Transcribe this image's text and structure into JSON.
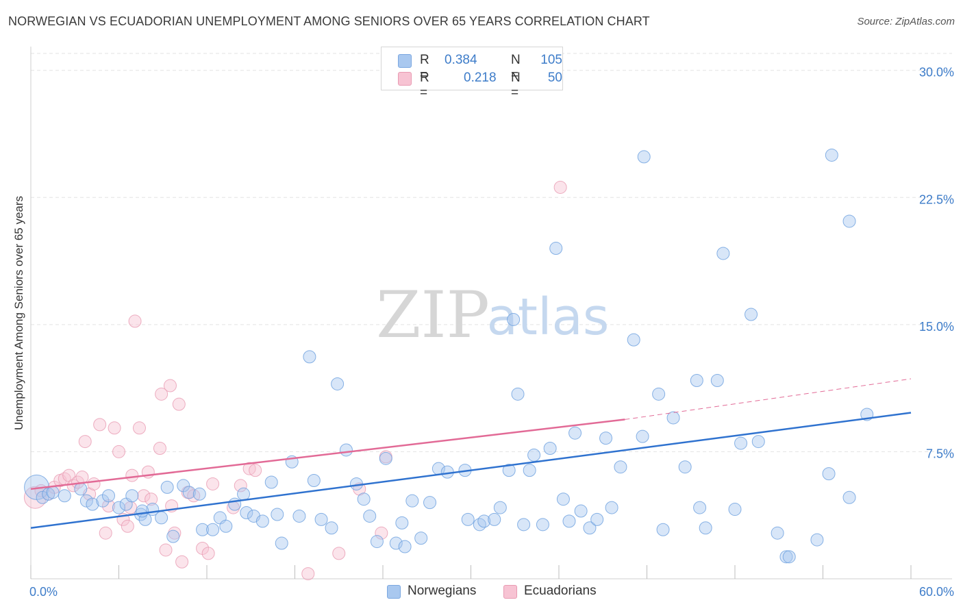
{
  "header": {
    "title": "NORWEGIAN VS ECUADORIAN UNEMPLOYMENT AMONG SENIORS OVER 65 YEARS CORRELATION CHART",
    "source": "Source: ZipAtlas.com"
  },
  "watermark": {
    "zip": "ZIP",
    "atlas": "atlas"
  },
  "legend": {
    "r_label": "R =",
    "n_label": "N =",
    "rows": [
      {
        "r": "0.384",
        "n": "105",
        "color": "#a9c8ef",
        "border": "#7aa7e0"
      },
      {
        "r": "0.218",
        "n": "50",
        "color": "#f7c3d3",
        "border": "#e89ab2"
      }
    ]
  },
  "bottom_legend": [
    {
      "label": "Norwegians",
      "color": "#a9c8ef",
      "border": "#7aa7e0"
    },
    {
      "label": "Ecuadorians",
      "color": "#f7c3d3",
      "border": "#e89ab2"
    }
  ],
  "chart_data": {
    "type": "scatter",
    "title": "NORWEGIAN VS ECUADORIAN UNEMPLOYMENT AMONG SENIORS OVER 65 YEARS CORRELATION CHART",
    "xlabel": "",
    "ylabel": "Unemployment Among Seniors over 65 years",
    "xlim": [
      0,
      60
    ],
    "ylim": [
      0,
      31
    ],
    "x_tick_labels": [
      "0.0%",
      "60.0%"
    ],
    "y_ticks": [
      7.5,
      15.0,
      22.5,
      30.0
    ],
    "y_tick_labels": [
      "7.5%",
      "15.0%",
      "22.5%",
      "30.0%"
    ],
    "grid": true,
    "legend_position": "top-center",
    "series": [
      {
        "name": "Norwegians",
        "color": "#7aaee6",
        "line_color": "#2f72cf",
        "trend": {
          "x": [
            0,
            60
          ],
          "y": [
            3.0,
            9.8
          ]
        },
        "points": [
          [
            0.4,
            5.4
          ],
          [
            0.8,
            4.8
          ],
          [
            1.2,
            5.0
          ],
          [
            1.5,
            5.1
          ],
          [
            2.3,
            4.9
          ],
          [
            3.4,
            5.3
          ],
          [
            3.8,
            4.6
          ],
          [
            4.2,
            4.4
          ],
          [
            4.9,
            4.6
          ],
          [
            5.3,
            4.9
          ],
          [
            6.0,
            4.2
          ],
          [
            6.5,
            4.4
          ],
          [
            6.9,
            4.9
          ],
          [
            7.5,
            3.8
          ],
          [
            7.8,
            3.5
          ],
          [
            8.3,
            4.1
          ],
          [
            8.9,
            3.6
          ],
          [
            9.3,
            5.4
          ],
          [
            9.7,
            2.5
          ],
          [
            10.4,
            5.5
          ],
          [
            10.8,
            5.1
          ],
          [
            11.5,
            5.0
          ],
          [
            11.7,
            2.9
          ],
          [
            12.4,
            2.9
          ],
          [
            12.9,
            3.6
          ],
          [
            13.3,
            3.1
          ],
          [
            13.9,
            4.4
          ],
          [
            14.5,
            5.0
          ],
          [
            14.7,
            3.9
          ],
          [
            15.2,
            3.7
          ],
          [
            15.8,
            3.4
          ],
          [
            16.4,
            5.7
          ],
          [
            16.8,
            3.8
          ],
          [
            17.1,
            2.1
          ],
          [
            17.8,
            6.9
          ],
          [
            18.3,
            3.7
          ],
          [
            19.0,
            13.1
          ],
          [
            19.3,
            5.8
          ],
          [
            19.8,
            3.5
          ],
          [
            20.5,
            3.0
          ],
          [
            20.9,
            11.5
          ],
          [
            21.5,
            7.6
          ],
          [
            22.2,
            5.6
          ],
          [
            22.7,
            4.7
          ],
          [
            23.1,
            3.7
          ],
          [
            23.6,
            2.2
          ],
          [
            24.2,
            7.1
          ],
          [
            24.9,
            2.1
          ],
          [
            25.3,
            3.3
          ],
          [
            25.5,
            1.9
          ],
          [
            26.0,
            4.6
          ],
          [
            26.6,
            2.4
          ],
          [
            27.2,
            4.5
          ],
          [
            27.8,
            6.5
          ],
          [
            28.4,
            6.3
          ],
          [
            29.6,
            6.4
          ],
          [
            29.8,
            3.5
          ],
          [
            30.6,
            3.2
          ],
          [
            30.9,
            3.4
          ],
          [
            31.6,
            3.5
          ],
          [
            32.0,
            4.2
          ],
          [
            32.6,
            6.4
          ],
          [
            32.9,
            15.3
          ],
          [
            33.2,
            10.9
          ],
          [
            33.6,
            3.2
          ],
          [
            34.0,
            6.4
          ],
          [
            34.3,
            7.3
          ],
          [
            34.9,
            3.2
          ],
          [
            35.4,
            7.7
          ],
          [
            35.8,
            19.5
          ],
          [
            36.3,
            4.7
          ],
          [
            36.7,
            3.4
          ],
          [
            37.1,
            8.6
          ],
          [
            37.5,
            4.0
          ],
          [
            38.1,
            3.0
          ],
          [
            38.6,
            3.5
          ],
          [
            39.2,
            8.3
          ],
          [
            39.6,
            4.2
          ],
          [
            40.2,
            6.6
          ],
          [
            41.1,
            14.1
          ],
          [
            41.7,
            8.4
          ],
          [
            41.8,
            24.9
          ],
          [
            42.8,
            10.9
          ],
          [
            43.1,
            2.9
          ],
          [
            43.8,
            9.5
          ],
          [
            44.6,
            6.6
          ],
          [
            45.4,
            11.7
          ],
          [
            45.6,
            4.2
          ],
          [
            46.0,
            3.0
          ],
          [
            46.8,
            11.7
          ],
          [
            47.2,
            19.2
          ],
          [
            48.0,
            4.1
          ],
          [
            48.4,
            8.0
          ],
          [
            49.1,
            15.6
          ],
          [
            49.6,
            8.1
          ],
          [
            50.9,
            2.7
          ],
          [
            51.5,
            1.3
          ],
          [
            51.7,
            1.3
          ],
          [
            53.6,
            2.3
          ],
          [
            54.4,
            6.2
          ],
          [
            54.6,
            25.0
          ],
          [
            55.8,
            21.1
          ],
          [
            55.8,
            4.8
          ],
          [
            57.0,
            9.7
          ],
          [
            7.6,
            4.0
          ]
        ],
        "sizes_note": "first point drawn larger"
      },
      {
        "name": "Ecuadorians",
        "color": "#f2a3bd",
        "line_color": "#e26a96",
        "trend": {
          "x": [
            0,
            40.5
          ],
          "y": [
            5.3,
            9.4
          ]
        },
        "trend_dashed": {
          "x": [
            40.5,
            60
          ],
          "y": [
            9.4,
            11.8
          ]
        },
        "points": [
          [
            0.3,
            4.8
          ],
          [
            0.7,
            5.2
          ],
          [
            1.2,
            5.0
          ],
          [
            1.6,
            5.4
          ],
          [
            2.0,
            5.8
          ],
          [
            2.3,
            5.9
          ],
          [
            2.6,
            6.1
          ],
          [
            2.9,
            5.5
          ],
          [
            3.2,
            5.7
          ],
          [
            3.5,
            6.0
          ],
          [
            3.7,
            8.1
          ],
          [
            4.0,
            5.0
          ],
          [
            4.3,
            5.6
          ],
          [
            4.7,
            9.1
          ],
          [
            5.1,
            2.7
          ],
          [
            5.3,
            4.3
          ],
          [
            5.7,
            8.9
          ],
          [
            6.0,
            7.5
          ],
          [
            6.3,
            3.5
          ],
          [
            6.6,
            3.1
          ],
          [
            6.9,
            6.1
          ],
          [
            7.1,
            15.2
          ],
          [
            7.4,
            8.9
          ],
          [
            7.7,
            4.9
          ],
          [
            8.0,
            6.3
          ],
          [
            8.2,
            4.7
          ],
          [
            8.8,
            7.7
          ],
          [
            8.9,
            10.9
          ],
          [
            9.2,
            1.7
          ],
          [
            9.5,
            11.4
          ],
          [
            9.8,
            2.7
          ],
          [
            10.1,
            10.3
          ],
          [
            10.3,
            1.0
          ],
          [
            10.7,
            5.1
          ],
          [
            11.1,
            4.9
          ],
          [
            11.7,
            1.8
          ],
          [
            12.1,
            1.5
          ],
          [
            12.4,
            5.6
          ],
          [
            13.8,
            4.2
          ],
          [
            14.3,
            5.5
          ],
          [
            14.9,
            6.5
          ],
          [
            15.3,
            6.4
          ],
          [
            18.9,
            0.3
          ],
          [
            21.0,
            1.5
          ],
          [
            22.4,
            5.3
          ],
          [
            23.9,
            2.7
          ],
          [
            24.2,
            7.2
          ],
          [
            36.1,
            23.1
          ],
          [
            9.6,
            4.3
          ],
          [
            6.8,
            4.2
          ]
        ]
      }
    ]
  }
}
